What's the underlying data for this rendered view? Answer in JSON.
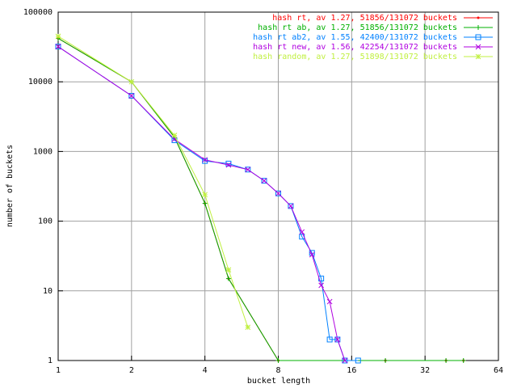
{
  "chart_data": {
    "type": "line",
    "xlabel": "bucket length",
    "ylabel": "number of buckets",
    "xscale": "log",
    "yscale": "log",
    "grid": true,
    "legend": "top-right",
    "xlim": [
      1,
      64
    ],
    "xticks": [
      1,
      2,
      4,
      8,
      16,
      32,
      64
    ],
    "ylim": [
      1,
      100000
    ],
    "yticks": [
      1,
      10,
      100,
      1000,
      10000,
      100000
    ],
    "series": [
      {
        "name": "hash rt, av 1.27, 51856/131072 buckets",
        "color": "#ff0000",
        "marker": "dot",
        "x": [
          1,
          2,
          3,
          4,
          5,
          8,
          22,
          39,
          46
        ],
        "values": [
          42000,
          10000,
          1600,
          180,
          15,
          1,
          1,
          1,
          1
        ]
      },
      {
        "name": "hash rt ab, av 1.27, 51856/131072 buckets",
        "color": "#00b000",
        "marker": "plus",
        "x": [
          1,
          2,
          3,
          4,
          5,
          8,
          22,
          39,
          46
        ],
        "values": [
          42000,
          10000,
          1600,
          180,
          15,
          1,
          1,
          1,
          1
        ]
      },
      {
        "name": "hash rt ab2, av 1.55, 42400/131072 buckets",
        "color": "#0080ff",
        "marker": "square",
        "x": [
          1,
          2,
          3,
          4,
          5,
          6,
          7,
          8,
          9,
          10,
          11,
          12,
          13,
          14,
          15,
          17
        ],
        "values": [
          32000,
          6300,
          1450,
          730,
          670,
          550,
          380,
          250,
          165,
          60,
          35,
          15,
          2,
          2,
          1,
          1
        ]
      },
      {
        "name": "hash rt new, av 1.56, 42254/131072 buckets",
        "color": "#b000e0",
        "marker": "cross",
        "x": [
          1,
          2,
          3,
          4,
          5,
          6,
          7,
          8,
          9,
          10,
          11,
          12,
          13,
          14,
          15
        ],
        "values": [
          32000,
          6300,
          1500,
          760,
          640,
          550,
          380,
          250,
          165,
          70,
          33,
          12,
          7,
          2,
          1
        ]
      },
      {
        "name": "hash random, av 1.27, 51898/131072 buckets",
        "color": "#c0f040",
        "marker": "star",
        "x": [
          1,
          2,
          3,
          4,
          5,
          6
        ],
        "values": [
          45000,
          10000,
          1700,
          240,
          20,
          3
        ]
      }
    ]
  }
}
